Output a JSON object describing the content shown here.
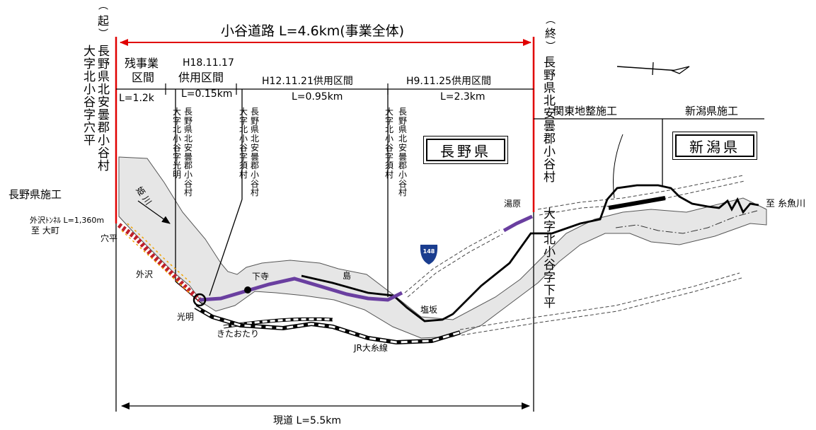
{
  "title": "小谷道路 L=4.6km(事業全体)",
  "start": {
    "paren_top": "（",
    "kanji": "起",
    "paren_bottom": "）",
    "address_left": "大字北小谷字穴平",
    "address_right": "長野県北安曇郡小谷村"
  },
  "end": {
    "paren_top": "（",
    "kanji": "終",
    "paren_bottom": "）",
    "address_top": "長野県北安曇郡小谷村",
    "address_bottom": "大字北小谷字下平"
  },
  "sections": {
    "remaining": {
      "label_line1": "残事業",
      "label_line2": "区間",
      "length": "L=1.2k"
    },
    "h18": {
      "date": "H18.11.17",
      "label": "供用区間",
      "length": "L=0.15km"
    },
    "h12": {
      "label": "H12.11.21供用区間",
      "length": "L=0.95km"
    },
    "h9": {
      "label": "H9.11.25供用区間",
      "length": "L=2.3km"
    }
  },
  "boundary_addresses": {
    "b1_left": "大字北小谷字光明",
    "b1_right": "長野県北安曇郡小谷村",
    "b2_left": "大字北小谷字須村",
    "b2_right": "長野県北安曇郡小谷村",
    "b3_left": "大字北小谷字須村",
    "b3_right": "長野県北安曇郡小谷村"
  },
  "construction": {
    "kanto": "関東地整施工",
    "niigata": "新潟県施工",
    "nagano": "長野県施工"
  },
  "prefectures": {
    "nagano": "長野県",
    "niigata": "新潟県"
  },
  "places": {
    "tunnel": "外沢ﾄﾝﾈﾙ L=1,360m",
    "to_omachi": "至 大町",
    "anadaira": "穴平",
    "tozawa": "外沢",
    "komyo": "光明",
    "shimodera": "下寺",
    "shima": "島",
    "shiosaka": "塩坂",
    "kitaotari": "きたおたり",
    "jr_line": "JR大糸線",
    "yubara": "湯原",
    "to_itoigawa": "至 糸魚川",
    "river": "姫 川",
    "route_number": "148"
  },
  "current_road": "現道 L=5.5km",
  "colors": {
    "project_span": "#e00000",
    "opened_road": "#6a3fa0",
    "remaining_road": "#c0202a",
    "construction_yellow": "#f2a400",
    "river_fill": "#e6e6e6",
    "route_shield": "#1a3d8f"
  }
}
